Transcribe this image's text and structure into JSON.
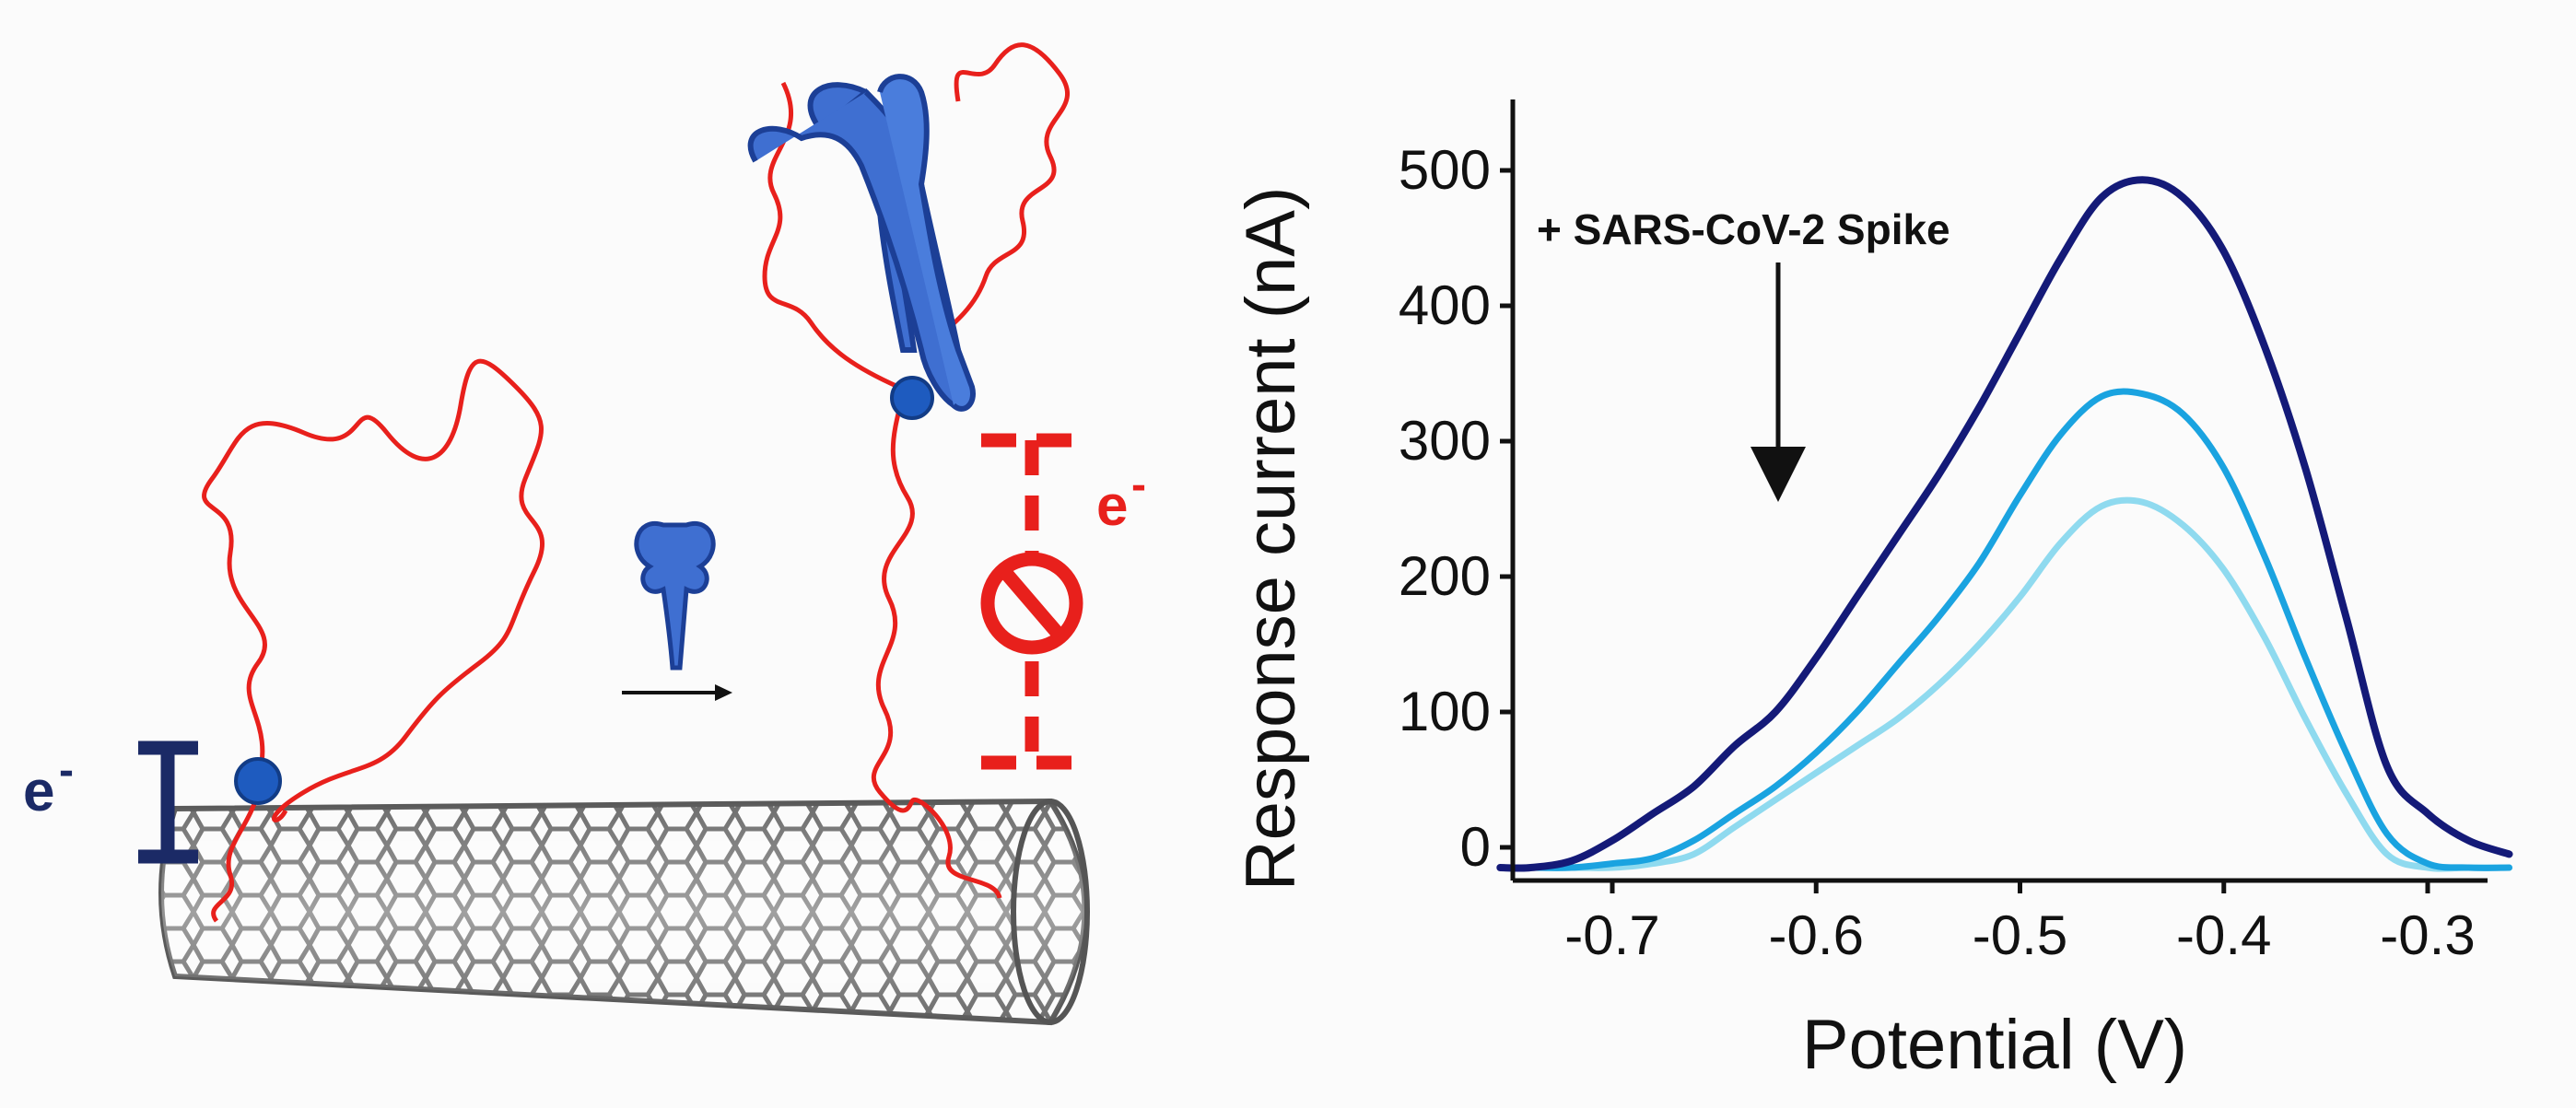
{
  "schematic": {
    "electron_label_left": "e",
    "electron_label_right": "e",
    "superscript": "-",
    "colors": {
      "aptamer": "#e8201c",
      "protein": "#3f6fd1",
      "protein_dark": "#1c3f96",
      "redox": "#1e5bbf",
      "electron_left": "#1b2a66",
      "electron_right": "#e8201c",
      "nanotube": "#6d6d6d"
    }
  },
  "chart_data": {
    "type": "line",
    "xlabel": "Potential (V)",
    "ylabel": "Response current (nA)",
    "xlim": [
      -0.76,
      -0.25
    ],
    "ylim": [
      -20,
      560
    ],
    "xticks": [
      -0.7,
      -0.6,
      -0.5,
      -0.4,
      -0.3
    ],
    "xtick_labels": [
      "-0.7",
      "-0.6",
      "-0.5",
      "-0.4",
      "-0.3"
    ],
    "yticks": [
      0,
      100,
      200,
      300,
      400,
      500
    ],
    "ytick_labels": [
      "0",
      "100",
      "200",
      "300",
      "400",
      "500"
    ],
    "annotation": "+ SARS-CoV-2 Spike",
    "grid": false,
    "series": [
      {
        "color": "#141a78",
        "x": [
          -0.755,
          -0.74,
          -0.72,
          -0.7,
          -0.68,
          -0.66,
          -0.64,
          -0.62,
          -0.6,
          -0.58,
          -0.56,
          -0.54,
          -0.52,
          -0.5,
          -0.48,
          -0.46,
          -0.44,
          -0.42,
          -0.4,
          -0.38,
          -0.36,
          -0.34,
          -0.32,
          -0.3,
          -0.28,
          -0.26
        ],
        "y": [
          -15,
          -15,
          -10,
          5,
          25,
          45,
          75,
          100,
          140,
          185,
          230,
          275,
          325,
          380,
          435,
          480,
          493,
          480,
          440,
          370,
          280,
          170,
          60,
          25,
          5,
          -5
        ]
      },
      {
        "color": "#1aa3e0",
        "x": [
          -0.755,
          -0.74,
          -0.72,
          -0.7,
          -0.68,
          -0.66,
          -0.64,
          -0.62,
          -0.6,
          -0.58,
          -0.56,
          -0.54,
          -0.52,
          -0.5,
          -0.48,
          -0.46,
          -0.44,
          -0.42,
          -0.4,
          -0.38,
          -0.36,
          -0.34,
          -0.32,
          -0.3,
          -0.28,
          -0.26
        ],
        "y": [
          -15,
          -15,
          -15,
          -12,
          -8,
          5,
          25,
          45,
          70,
          100,
          135,
          170,
          210,
          260,
          305,
          333,
          335,
          320,
          280,
          215,
          140,
          70,
          10,
          -12,
          -15,
          -15
        ]
      },
      {
        "color": "#8fdaef",
        "x": [
          -0.755,
          -0.74,
          -0.72,
          -0.7,
          -0.68,
          -0.66,
          -0.64,
          -0.62,
          -0.6,
          -0.58,
          -0.56,
          -0.54,
          -0.52,
          -0.5,
          -0.48,
          -0.46,
          -0.44,
          -0.42,
          -0.4,
          -0.38,
          -0.36,
          -0.34,
          -0.32,
          -0.3,
          -0.28,
          -0.26
        ],
        "y": [
          -15,
          -15,
          -15,
          -15,
          -12,
          -5,
          15,
          35,
          55,
          75,
          95,
          120,
          150,
          185,
          225,
          252,
          255,
          238,
          205,
          155,
          95,
          40,
          -5,
          -15,
          -15,
          -15
        ]
      }
    ]
  }
}
